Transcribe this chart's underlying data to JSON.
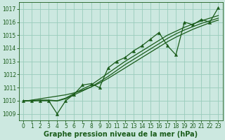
{
  "xlabel": "Graphe pression niveau de la mer (hPa)",
  "bg_color": "#cce8e0",
  "grid_color": "#99ccbb",
  "line_color": "#1a5c1a",
  "ylim": [
    1008.5,
    1017.5
  ],
  "xlim": [
    -0.5,
    23.5
  ],
  "yticks": [
    1009,
    1010,
    1011,
    1012,
    1013,
    1014,
    1015,
    1016,
    1017
  ],
  "xticks": [
    0,
    1,
    2,
    3,
    4,
    5,
    6,
    7,
    8,
    9,
    10,
    11,
    12,
    13,
    14,
    15,
    16,
    17,
    18,
    19,
    20,
    21,
    22,
    23
  ],
  "main_series": [
    1010.0,
    1010.0,
    1010.0,
    1010.0,
    1009.0,
    1010.0,
    1010.5,
    1011.2,
    1011.3,
    1011.0,
    1012.5,
    1013.0,
    1013.3,
    1013.8,
    1014.2,
    1014.7,
    1015.2,
    1014.2,
    1013.5,
    1016.0,
    1015.8,
    1016.2,
    1016.0,
    1017.1
  ],
  "smooth_series1": [
    1010.0,
    1010.0,
    1010.05,
    1010.05,
    1010.0,
    1010.2,
    1010.55,
    1010.9,
    1011.2,
    1011.65,
    1012.1,
    1012.55,
    1013.0,
    1013.4,
    1013.8,
    1014.2,
    1014.6,
    1015.0,
    1015.3,
    1015.6,
    1015.85,
    1016.1,
    1016.3,
    1016.5
  ],
  "smooth_series2": [
    1010.0,
    1010.0,
    1010.02,
    1010.02,
    1009.98,
    1010.15,
    1010.45,
    1010.75,
    1011.05,
    1011.45,
    1011.85,
    1012.3,
    1012.75,
    1013.15,
    1013.55,
    1013.95,
    1014.35,
    1014.75,
    1015.1,
    1015.4,
    1015.65,
    1015.9,
    1016.1,
    1016.3
  ],
  "trend_series": [
    1009.95,
    1010.05,
    1010.15,
    1010.25,
    1010.35,
    1010.45,
    1010.6,
    1010.8,
    1011.05,
    1011.35,
    1011.7,
    1012.1,
    1012.5,
    1012.9,
    1013.3,
    1013.7,
    1014.1,
    1014.5,
    1014.85,
    1015.15,
    1015.45,
    1015.7,
    1015.95,
    1016.15
  ],
  "marker_size": 3,
  "linewidth": 0.9,
  "label_fontsize": 7,
  "tick_fontsize": 5.5
}
